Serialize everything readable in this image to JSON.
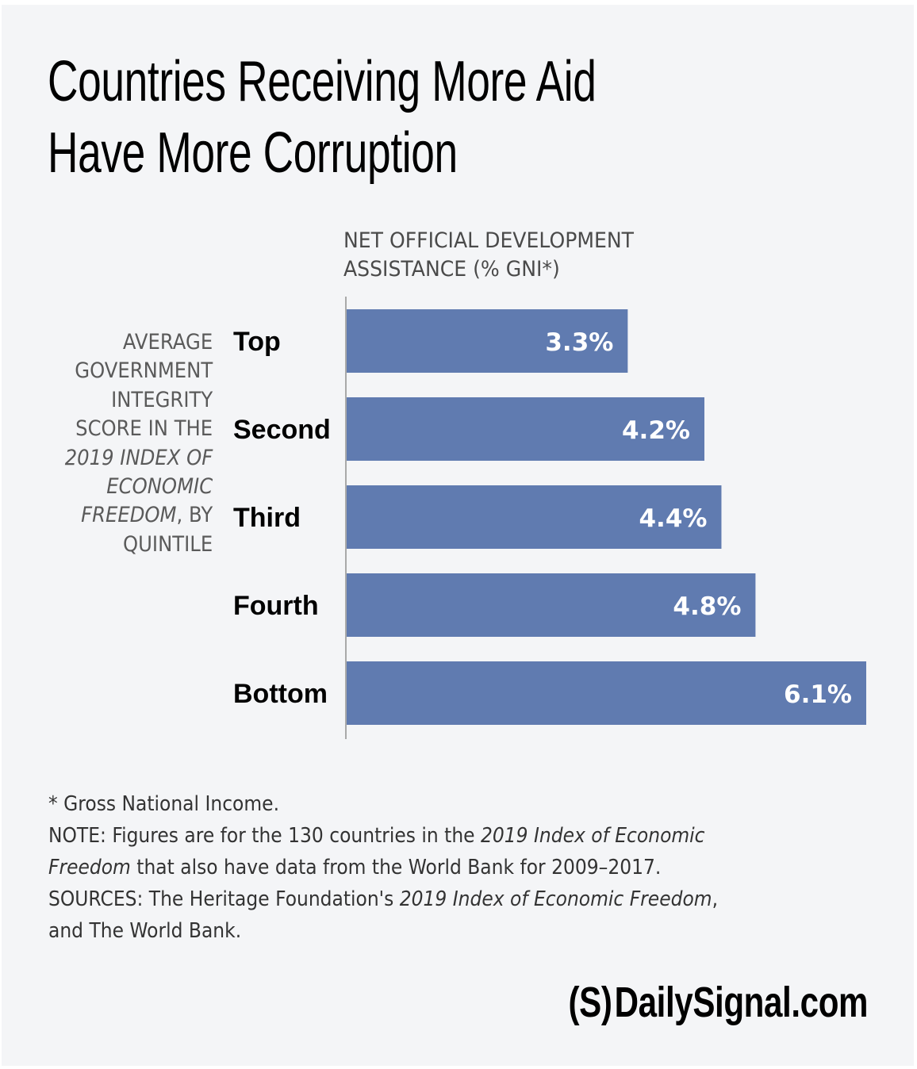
{
  "header": {
    "title_line1": "Countries Receiving More Aid",
    "title_line2": "Have More Corruption"
  },
  "chart_data": {
    "type": "bar",
    "orientation": "horizontal",
    "title": "Countries Receiving More Aid Have More Corruption",
    "xlabel_line1": "NET OFFICIAL DEVELOPMENT",
    "xlabel_line2": "ASSISTANCE (% GNI*)",
    "ylabel_lines": [
      "AVERAGE",
      "GOVERNMENT",
      "INTEGRITY",
      "SCORE IN THE",
      "2019 INDEX OF",
      "ECONOMIC",
      "FREEDOM, BY",
      "QUINTILE"
    ],
    "ylabel_italic_lines": [
      "2019 INDEX OF",
      "ECONOMIC",
      "FREEDOM"
    ],
    "ylabel_freedom_italic": "FREEDOM",
    "ylabel_freedom_rest": ", BY",
    "categories": [
      "Top",
      "Second",
      "Third",
      "Fourth",
      "Bottom"
    ],
    "values": [
      3.3,
      4.2,
      4.4,
      4.8,
      6.1
    ],
    "value_labels": [
      "3.3%",
      "4.2%",
      "4.4%",
      "4.8%",
      "6.1%"
    ],
    "unit": "%",
    "xlim": [
      0,
      6.1
    ],
    "grid": false,
    "legend": "none",
    "bar_color": "#607bb0",
    "label_color": "#ffffff"
  },
  "notes": {
    "footnote": "* Gross National Income.",
    "note_prefix": "NOTE: Figures are for the 130 countries in the ",
    "note_italic1": "2019 Index of Economic",
    "note_italic2": "Freedom",
    "note_suffix": " that also have data from the World Bank for 2009–2017.",
    "sources_prefix": "SOURCES: The Heritage Foundation's ",
    "sources_italic": "2019 Index of Economic Freedom",
    "sources_comma": ",",
    "sources_line2": "and The World Bank."
  },
  "brand": {
    "logo": "(S)",
    "name": "DailySignal.com"
  }
}
